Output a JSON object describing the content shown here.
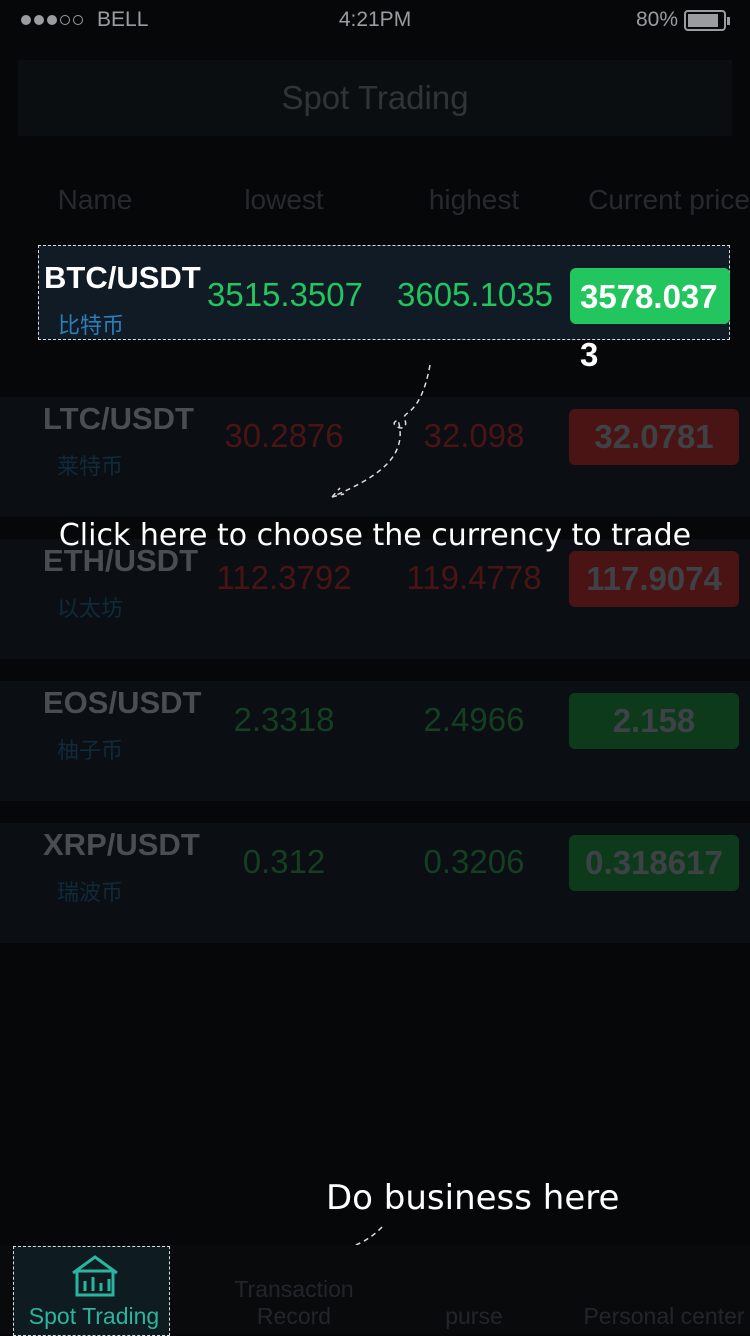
{
  "status_bar": {
    "carrier": "BELL",
    "time": "4:21PM",
    "battery": "80%"
  },
  "header": {
    "title": "Spot Trading"
  },
  "table": {
    "columns": [
      "Name",
      "lowest",
      "highest",
      "Current price"
    ],
    "rows": [
      {
        "symbol": "BTC",
        "quote": "/USDT",
        "name_cn": "比特币",
        "lowest": "3515.3507",
        "highest": "3605.1035",
        "current": "3578.0373",
        "trend": "up",
        "highlighted": true
      },
      {
        "symbol": "LTC",
        "quote": "/USDT",
        "name_cn": "莱特币",
        "lowest": "30.2876",
        "highest": "32.098",
        "current": "32.0781",
        "trend": "down",
        "highlighted": false
      },
      {
        "symbol": "ETH",
        "quote": "/USDT",
        "name_cn": "以太坊",
        "lowest": "112.3792",
        "highest": "119.4778",
        "current": "117.9074",
        "trend": "down",
        "highlighted": false
      },
      {
        "symbol": "EOS",
        "quote": "/USDT",
        "name_cn": "柚子币",
        "lowest": "2.3318",
        "highest": "2.4966",
        "current": "2.158",
        "trend": "up",
        "highlighted": false
      },
      {
        "symbol": "XRP",
        "quote": "/USDT",
        "name_cn": "瑞波币",
        "lowest": "0.312",
        "highest": "0.3206",
        "current": "0.318617",
        "trend": "up",
        "highlighted": false
      }
    ]
  },
  "tips": {
    "choose_currency": "Click here to choose the currency to trade",
    "do_business": "Do business here"
  },
  "tab_bar": {
    "tabs": [
      "Spot Trading",
      "Transaction Record",
      "purse",
      "Personal center"
    ],
    "active": 0
  }
}
